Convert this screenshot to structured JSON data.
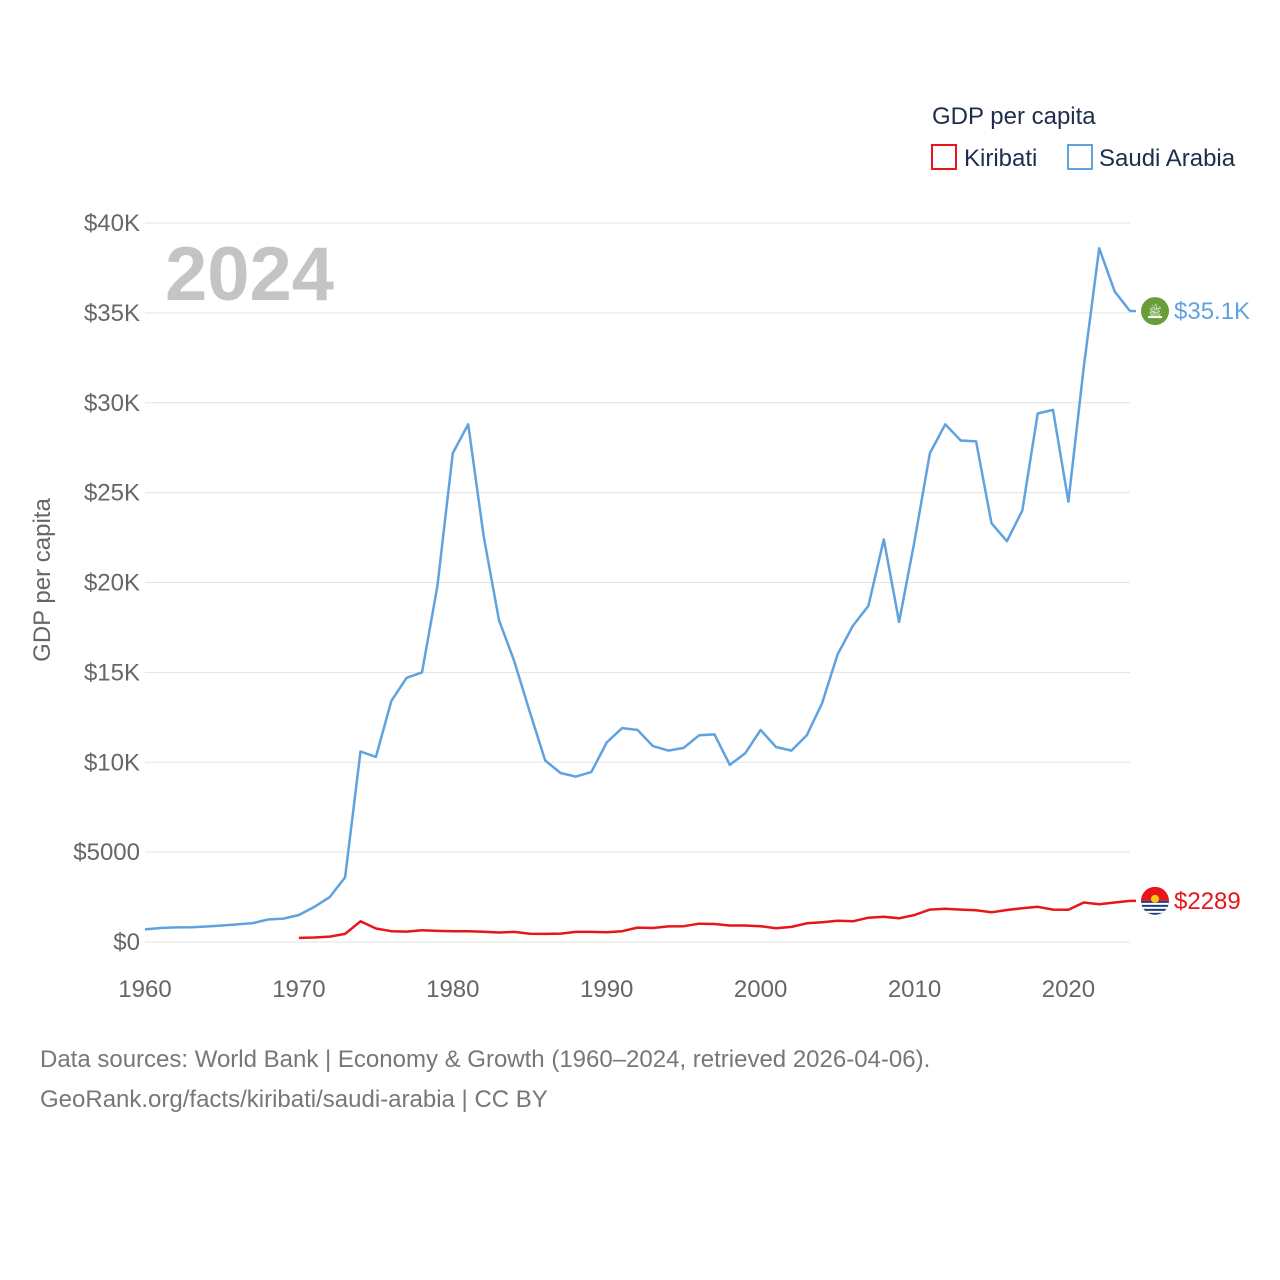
{
  "chart_data": {
    "type": "line",
    "title": "",
    "year_label": "2024",
    "xlabel": "",
    "ylabel": "GDP per capita",
    "xlim": [
      1960,
      2024
    ],
    "ylim": [
      0,
      40000
    ],
    "x_ticks": [
      1960,
      1970,
      1980,
      1990,
      2000,
      2010,
      2020
    ],
    "x_tick_labels": [
      "1960",
      "1970",
      "1980",
      "1990",
      "2000",
      "2010",
      "2020"
    ],
    "y_ticks": [
      0,
      5000,
      10000,
      15000,
      20000,
      25000,
      30000,
      35000,
      40000
    ],
    "y_tick_labels": [
      "$0",
      "$5000",
      "$10K",
      "$15K",
      "$20K",
      "$25K",
      "$30K",
      "$35K",
      "$40K"
    ],
    "legend": {
      "title": "GDP per capita",
      "position": "top-right",
      "entries": [
        "Kiribati",
        "Saudi Arabia"
      ]
    },
    "series": [
      {
        "name": "Kiribati",
        "color": "#e8151a",
        "end_label": "$2289",
        "x": [
          1970,
          1971,
          1972,
          1973,
          1974,
          1975,
          1976,
          1977,
          1978,
          1979,
          1980,
          1981,
          1982,
          1983,
          1984,
          1985,
          1986,
          1987,
          1988,
          1989,
          1990,
          1991,
          1992,
          1993,
          1994,
          1995,
          1996,
          1997,
          1998,
          1999,
          2000,
          2001,
          2002,
          2003,
          2004,
          2005,
          2006,
          2007,
          2008,
          2009,
          2010,
          2011,
          2012,
          2013,
          2014,
          2015,
          2016,
          2017,
          2018,
          2019,
          2020,
          2021,
          2022,
          2023,
          2024
        ],
        "values": [
          230,
          250,
          300,
          450,
          1150,
          750,
          600,
          580,
          650,
          620,
          600,
          600,
          570,
          530,
          560,
          460,
          450,
          470,
          560,
          560,
          540,
          600,
          800,
          780,
          870,
          880,
          1020,
          1000,
          920,
          920,
          880,
          760,
          840,
          1040,
          1100,
          1180,
          1150,
          1350,
          1400,
          1320,
          1500,
          1800,
          1850,
          1800,
          1770,
          1650,
          1780,
          1880,
          1960,
          1800,
          1790,
          2200,
          2100,
          2200,
          2289
        ]
      },
      {
        "name": "Saudi Arabia",
        "color": "#5ea3e0",
        "end_label": "$35.1K",
        "x": [
          1960,
          1961,
          1962,
          1963,
          1964,
          1965,
          1966,
          1967,
          1968,
          1969,
          1970,
          1971,
          1972,
          1973,
          1974,
          1975,
          1976,
          1977,
          1978,
          1979,
          1980,
          1981,
          1982,
          1983,
          1984,
          1985,
          1986,
          1987,
          1988,
          1989,
          1990,
          1991,
          1992,
          1993,
          1994,
          1995,
          1996,
          1997,
          1998,
          1999,
          2000,
          2001,
          2002,
          2003,
          2004,
          2005,
          2006,
          2007,
          2008,
          2009,
          2010,
          2011,
          2012,
          2013,
          2014,
          2015,
          2016,
          2017,
          2018,
          2019,
          2020,
          2021,
          2022,
          2023,
          2024
        ],
        "values": [
          700,
          780,
          810,
          820,
          860,
          920,
          980,
          1050,
          1250,
          1300,
          1500,
          1950,
          2500,
          3600,
          10600,
          10300,
          13400,
          14700,
          15000,
          19800,
          27200,
          28800,
          22600,
          17900,
          15600,
          12800,
          10100,
          9400,
          9200,
          9450,
          11100,
          11900,
          11800,
          10900,
          10650,
          10800,
          11500,
          11550,
          9850,
          10500,
          11800,
          10850,
          10650,
          11500,
          13300,
          16000,
          17600,
          18700,
          22400,
          17800,
          22300,
          27200,
          28800,
          27900,
          27850,
          23300,
          22300,
          24000,
          29400,
          29600,
          24500,
          32000,
          38600,
          36200,
          35100
        ]
      }
    ],
    "footer": {
      "line1": "Data sources: World Bank | Economy & Growth (1960–2024, retrieved 2026-04-06).",
      "line2": "GeoRank.org/facts/kiribati/saudi-arabia | CC BY"
    }
  }
}
